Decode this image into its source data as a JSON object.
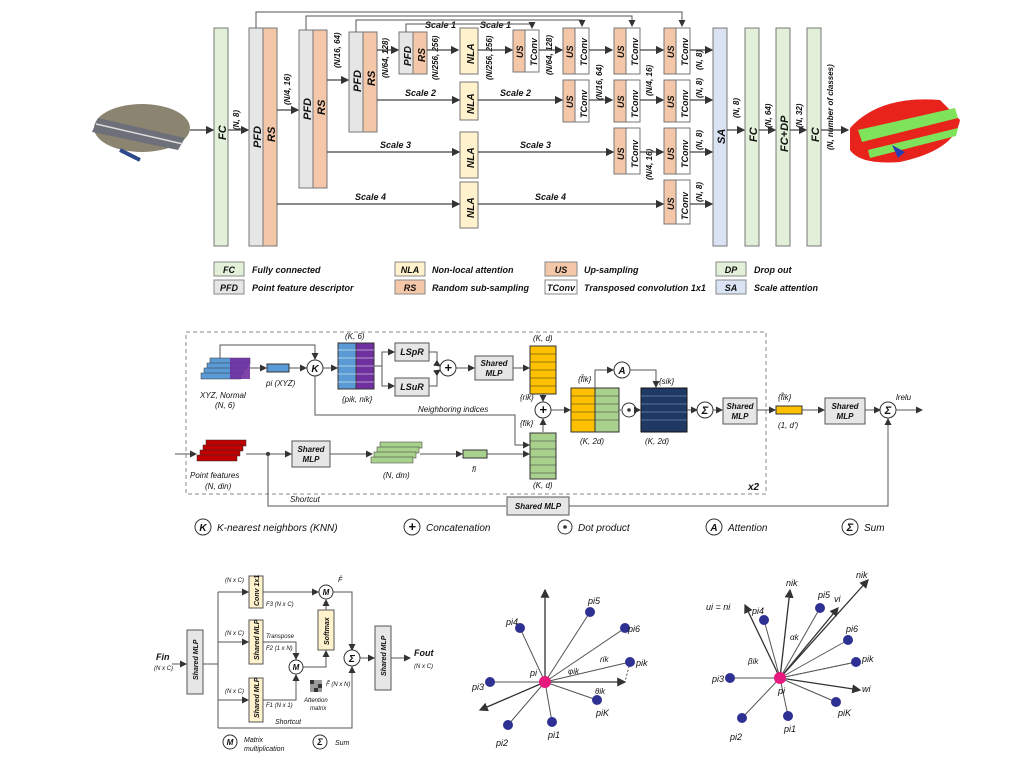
{
  "top": {
    "fc": "FC",
    "pfd": "PFD",
    "rs": "RS",
    "nla": "NLA",
    "us": "US",
    "tconv": "TConv",
    "sa": "SA",
    "fcdp": "FC+DP",
    "dims": {
      "n8": "(N, 8)",
      "n4_16": "(N/4, 16)",
      "n16_64": "(N/16, 64)",
      "n64_128": "(N/64, 128)",
      "n256_256": "(N/256, 256)",
      "n64": "(N, 64)",
      "n32": "(N, 32)",
      "nclasses": "(N, number of classes)"
    },
    "scales": {
      "s1": "Scale 1",
      "s2": "Scale 2",
      "s3": "Scale 3",
      "s4": "Scale 4"
    }
  },
  "legend": [
    {
      "abbr": "FC",
      "text": "Fully connected",
      "color": "#e2f0d9"
    },
    {
      "abbr": "PFD",
      "text": "Point feature descriptor",
      "color": "#e6e6e6"
    },
    {
      "abbr": "NLA",
      "text": "Non-local attention",
      "color": "#fff2cc"
    },
    {
      "abbr": "RS",
      "text": "Random sub-sampling",
      "color": "#f4c7a8"
    },
    {
      "abbr": "US",
      "text": "Up-sampling",
      "color": "#f4c7a8"
    },
    {
      "abbr": "TConv",
      "text": "Transposed convolution 1x1",
      "color": "#ffffff"
    },
    {
      "abbr": "DP",
      "text": "Drop out",
      "color": "#e2f0d9"
    },
    {
      "abbr": "SA",
      "text": "Scale attention",
      "color": "#dae3f3"
    }
  ],
  "middle": {
    "xyz_normal": "XYZ, Normal",
    "n6": "(N, 6)",
    "pi_xyz": "pi (XYZ)",
    "k_label": "K",
    "k6": "(K, 6)",
    "pik_nik": "{pik, nik}",
    "lspr": "LSpR",
    "lsur": "LSuR",
    "shared_mlp": "Shared MLP",
    "kd": "(K, d)",
    "rik": "{rik}",
    "fik": "{fik}",
    "neighboring": "Neighboring indices",
    "fhat": "{f̂ik}",
    "k2d": "(K, 2d)",
    "sik": "{sik}",
    "a": "A",
    "ftilde": "{f̃ik}",
    "one_d": "(1, d')",
    "lrelu": "lrelu",
    "point_features": "Point features",
    "n_din": "(N, din)",
    "fi": "fi",
    "shortcut": "Shortcut",
    "x2": "x2"
  },
  "symbols": {
    "knn_sym": "K",
    "knn": "K-nearest neighbors (KNN)",
    "concat": "Concatenation",
    "dot": "Dot product",
    "attn_sym": "A",
    "attn": "Attention",
    "sum": "Sum"
  },
  "bottom_left": {
    "fin": "Fin",
    "nxc": "(N x C)",
    "conv": "Conv 1x1",
    "shared_mlp": "Shared MLP",
    "f3": "F3 (N x C)",
    "transpose": "Transpose",
    "f2": "F2 (1 x N)",
    "f1": "F1 (N x 1)",
    "softmax": "Softmax",
    "fhat": "F̂",
    "ftilde": "F̃ (N x N)",
    "attn_matrix": "Attention matrix",
    "fout": "Fout",
    "shortcut": "Shortcut",
    "m_sym": "M",
    "mm": "Matrix multiplication",
    "sum": "Sum"
  },
  "bottom_mid": {
    "pi4": "pi4",
    "pi5": "pi5",
    "pi6": "pi6",
    "pik": "pik",
    "pi3": "pi3",
    "pi": "pi",
    "piK": "piK",
    "pi2": "pi2",
    "pi1": "pi1",
    "phi": "φik",
    "rik": "rik",
    "theta": "θik"
  },
  "bottom_right": {
    "ui_ni": "ui = ni",
    "nik_top": "nik",
    "vi": "vi",
    "nik": "nik",
    "wi": "wi",
    "alpha": "αk",
    "beta": "βik",
    "pi3": "pi3",
    "pi4": "pi4",
    "pi5": "pi5",
    "pi6": "pi6",
    "pik": "pik",
    "pi": "pi",
    "piK": "piK",
    "pi2": "pi2",
    "pi1": "pi1"
  }
}
